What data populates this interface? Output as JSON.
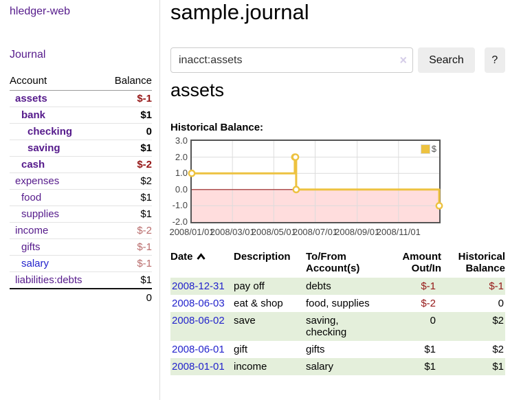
{
  "colors": {
    "link_purple": "#551a8b",
    "link_blue": "#2323cc",
    "negative_strong": "#951717",
    "negative_muted": "#b96c6c",
    "row_highlight_green": "#e4efdb",
    "chart_line_gold": "#edc240",
    "chart_negative_fill": "#ffdddd",
    "chart_zero_line": "#991f1f"
  },
  "sidebar": {
    "brand": "hledger-web",
    "nav_journal_label": "Journal",
    "accounts_table": {
      "headers": [
        "Account",
        "Balance"
      ],
      "rows": [
        {
          "account": "assets",
          "indent": 1,
          "bold": true,
          "balance": "$-1",
          "balance_style": "neg-strong"
        },
        {
          "account": "bank",
          "indent": 2,
          "bold": true,
          "balance": "$1",
          "balance_style": "plain"
        },
        {
          "account": "checking",
          "indent": 3,
          "bold": true,
          "balance": "0",
          "balance_style": "plain"
        },
        {
          "account": "saving",
          "indent": 3,
          "bold": true,
          "balance": "$1",
          "balance_style": "plain"
        },
        {
          "account": "cash",
          "indent": 2,
          "bold": true,
          "balance": "$-2",
          "balance_style": "neg-strong"
        },
        {
          "account": "expenses",
          "indent": 1,
          "bold": false,
          "balance": "$2",
          "balance_style": "plain"
        },
        {
          "account": "food",
          "indent": 2,
          "bold": false,
          "balance": "$1",
          "balance_style": "plain"
        },
        {
          "account": "supplies",
          "indent": 2,
          "bold": false,
          "balance": "$1",
          "balance_style": "plain"
        },
        {
          "account": "income",
          "indent": 1,
          "bold": false,
          "balance": "$-2",
          "balance_style": "neg-muted"
        },
        {
          "account": "gifts",
          "indent": 2,
          "bold": false,
          "balance": "$-1",
          "balance_style": "neg-muted"
        },
        {
          "account": "salary",
          "indent": 2,
          "bold": false,
          "balance": "$-1",
          "balance_style": "neg-muted",
          "link_color": "blue"
        },
        {
          "account": "liabilities:debts",
          "indent": 1,
          "bold": false,
          "balance": "$1",
          "balance_style": "plain"
        }
      ],
      "total": "0"
    }
  },
  "main": {
    "title": "sample.journal",
    "search": {
      "value": "inacct:assets",
      "clear_label": "×",
      "button_label": "Search",
      "help_label": "?"
    },
    "account_heading": "assets",
    "register_table": {
      "headers": [
        "Date",
        "Description",
        "To/From Account(s)",
        "Amount Out/In",
        "Historical Balance"
      ],
      "rows": [
        {
          "date": "2008-12-31",
          "description": "pay off",
          "accounts": "debts",
          "amount": "$-1",
          "amount_negative": true,
          "balance": "$-1",
          "balance_negative": true
        },
        {
          "date": "2008-06-03",
          "description": "eat & shop",
          "accounts": "food, supplies",
          "amount": "$-2",
          "amount_negative": true,
          "balance": "0",
          "balance_negative": false
        },
        {
          "date": "2008-06-02",
          "description": "save",
          "accounts": "saving, checking",
          "amount": "0",
          "amount_negative": false,
          "balance": "$2",
          "balance_negative": false
        },
        {
          "date": "2008-06-01",
          "description": "gift",
          "accounts": "gifts",
          "amount": "$1",
          "amount_negative": false,
          "balance": "$2",
          "balance_negative": false
        },
        {
          "date": "2008-01-01",
          "description": "income",
          "accounts": "salary",
          "amount": "$1",
          "amount_negative": false,
          "balance": "$1",
          "balance_negative": false
        }
      ]
    }
  },
  "chart_data": {
    "type": "line",
    "title": "Historical Balance:",
    "x_ticks": [
      "2008/01/01",
      "2008/03/01",
      "2008/05/01",
      "2008/07/01",
      "2008/09/01",
      "2008/11/01"
    ],
    "y_ticks": [
      3.0,
      2.0,
      1.0,
      0.0,
      -1.0,
      -2.0
    ],
    "y_gridlines": [
      2,
      1,
      0,
      -1
    ],
    "xlim": [
      "2008-01-01",
      "2008-12-31"
    ],
    "ylim": [
      -2,
      3
    ],
    "legend": {
      "label": "$",
      "position": "top-right"
    },
    "series": [
      {
        "name": "$",
        "step": true,
        "points": [
          {
            "date": "2008-01-01",
            "value": 1
          },
          {
            "date": "2008-06-01",
            "value": 2
          },
          {
            "date": "2008-06-02",
            "value": 2
          },
          {
            "date": "2008-06-03",
            "value": 0
          },
          {
            "date": "2008-12-31",
            "value": -1
          }
        ]
      }
    ]
  }
}
